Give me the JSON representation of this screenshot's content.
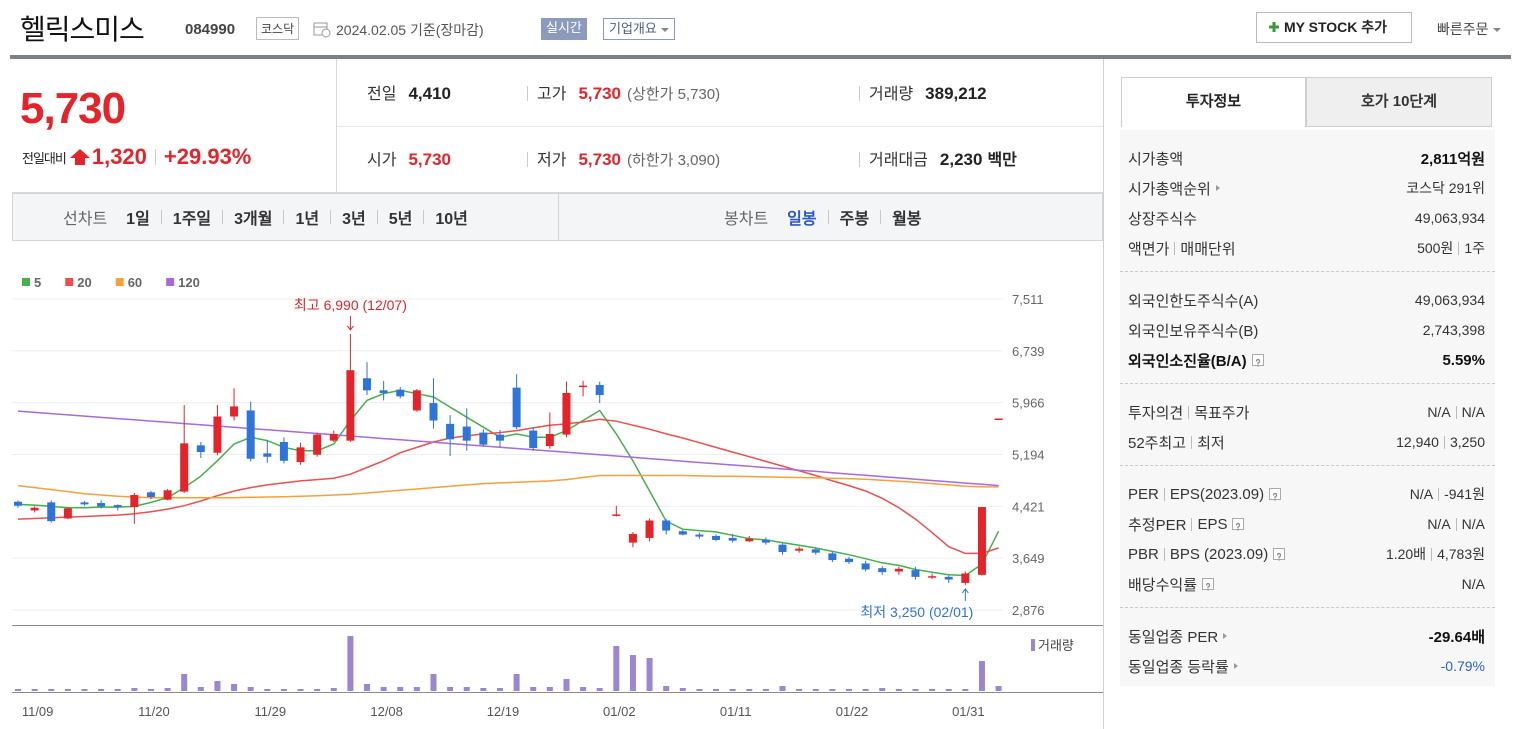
{
  "header": {
    "name": "헬릭스미스",
    "code": "084990",
    "market": "코스닥",
    "date": "2024.02.05 기준(장마감)",
    "realtime": "실시간",
    "company_info": "기업개요",
    "my_stock": "MY STOCK 추가",
    "quick_order": "빠른주문"
  },
  "price": {
    "current": "5,730",
    "change_label": "전일대비",
    "change": "1,320",
    "change_rate": "+29.93%"
  },
  "quote_table": [
    [
      {
        "label": "전일",
        "value": "4,410"
      },
      {
        "label": "고가",
        "value": "5,730",
        "note": "(상한가 5,730)",
        "highlight": true
      },
      {
        "label": "거래량",
        "value": "389,212"
      }
    ],
    [
      {
        "label": "시가",
        "value": "5,730",
        "highlight": true
      },
      {
        "label": "저가",
        "value": "5,730",
        "note": "(하한가 3,090)",
        "highlight": true
      },
      {
        "label": "거래대금",
        "value": "2,230",
        "unit": "백만"
      }
    ]
  ],
  "period_tabs": {
    "line_label": "선차트",
    "line": [
      "1일",
      "1주일",
      "3개월",
      "1년",
      "3년",
      "5년",
      "10년"
    ],
    "candle_label": "봉차트",
    "candle": [
      "일봉",
      "주봉",
      "월봉"
    ],
    "candle_active": 0
  },
  "info_tabs": [
    "투자정보",
    "호가 10단계"
  ],
  "info_groups": [
    [
      {
        "labels": [
          "시가총액"
        ],
        "values": [
          "2,811억원"
        ],
        "bold": true
      },
      {
        "labels": [
          "시가총액순위"
        ],
        "arrow": true,
        "values": [
          "코스닥 291위"
        ]
      },
      {
        "labels": [
          "상장주식수"
        ],
        "values": [
          "49,063,934"
        ]
      },
      {
        "labels": [
          "액면가",
          "매매단위"
        ],
        "values": [
          "500원",
          "1주"
        ]
      }
    ],
    [
      {
        "labels": [
          "외국인한도주식수(A)"
        ],
        "values": [
          "49,063,934"
        ]
      },
      {
        "labels": [
          "외국인보유주식수(B)"
        ],
        "values": [
          "2,743,398"
        ]
      },
      {
        "labels": [
          "외국인소진율(B/A)"
        ],
        "help": true,
        "values": [
          "5.59%"
        ],
        "bold": true
      }
    ],
    [
      {
        "labels": [
          "투자의견",
          "목표주가"
        ],
        "values": [
          "N/A",
          "N/A"
        ]
      },
      {
        "labels": [
          "52주최고",
          "최저"
        ],
        "values": [
          "12,940",
          "3,250"
        ]
      }
    ],
    [
      {
        "labels": [
          "PER",
          "EPS(2023.09)"
        ],
        "help": true,
        "values": [
          "N/A",
          "-941원"
        ]
      },
      {
        "labels": [
          "추정PER",
          "EPS"
        ],
        "help": true,
        "values": [
          "N/A",
          "N/A"
        ]
      },
      {
        "labels": [
          "PBR",
          "BPS (2023.09)"
        ],
        "help": true,
        "values": [
          "1.20배",
          "4,783원"
        ]
      },
      {
        "labels": [
          "배당수익률"
        ],
        "help": true,
        "values": [
          "N/A"
        ]
      }
    ],
    [
      {
        "labels": [
          "동일업종 PER"
        ],
        "arrow": true,
        "values": [
          "-29.64배"
        ],
        "bold": true
      },
      {
        "labels": [
          "동일업종 등락률"
        ],
        "arrow": true,
        "values": [
          "-0.79%"
        ],
        "color": "#2b5fd0"
      }
    ]
  ],
  "chart_data": {
    "type": "candlestick",
    "categories": [
      null,
      "11/09",
      null,
      null,
      null,
      null,
      null,
      null,
      "11/20",
      null,
      null,
      null,
      null,
      null,
      null,
      "11/29",
      null,
      null,
      null,
      null,
      null,
      null,
      "12/08",
      null,
      null,
      null,
      null,
      null,
      null,
      "12/19",
      null,
      null,
      null,
      null,
      null,
      null,
      "01/02",
      null,
      null,
      null,
      null,
      null,
      null,
      "01/11",
      null,
      null,
      null,
      null,
      null,
      null,
      "01/22",
      null,
      null,
      null,
      null,
      null,
      null,
      "01/31",
      null,
      null
    ],
    "open": [
      4490,
      4360,
      4480,
      4240,
      4480,
      4470,
      4440,
      4410,
      4630,
      4520,
      4640,
      5330,
      5220,
      5760,
      5850,
      5210,
      5380,
      5080,
      5190,
      5400,
      5400,
      6330,
      6150,
      6160,
      5850,
      5960,
      5650,
      5610,
      5520,
      5490,
      6190,
      5550,
      5320,
      5490,
      6200,
      6230,
      4280,
      3880,
      3950,
      4210,
      4050,
      4000,
      3980,
      3950,
      3900,
      3920,
      3850,
      3760,
      3780,
      3720,
      3640,
      3570,
      3500,
      3450,
      3470,
      3360,
      3370,
      3280,
      3400,
      5730
    ],
    "high": [
      4510,
      4420,
      4510,
      4400,
      4500,
      4510,
      4450,
      4620,
      4650,
      4680,
      5930,
      5380,
      5930,
      6180,
      5980,
      5400,
      5450,
      5370,
      5520,
      5550,
      6990,
      6570,
      6290,
      6200,
      6170,
      6330,
      5780,
      5880,
      5570,
      5560,
      6390,
      5600,
      5820,
      6280,
      6290,
      6280,
      4430,
      4040,
      4240,
      4230,
      4070,
      4030,
      4000,
      4010,
      3980,
      3960,
      3870,
      3820,
      3800,
      3750,
      3670,
      3610,
      3530,
      3520,
      3520,
      3420,
      3390,
      3450,
      4410,
      5730
    ],
    "low": [
      4400,
      4330,
      4180,
      4230,
      4430,
      4390,
      4360,
      4160,
      4530,
      4510,
      4620,
      5140,
      5180,
      5700,
      5090,
      5070,
      5060,
      5040,
      5160,
      5380,
      5380,
      6080,
      6000,
      6030,
      5830,
      5580,
      5170,
      5250,
      5310,
      5310,
      5570,
      5250,
      5280,
      5450,
      6060,
      5960,
      4270,
      3810,
      3900,
      4000,
      3990,
      3940,
      3900,
      3880,
      3890,
      3850,
      3700,
      3730,
      3700,
      3590,
      3560,
      3450,
      3400,
      3400,
      3330,
      3340,
      3280,
      3250,
      3390,
      5730
    ],
    "close": [
      4430,
      4400,
      4200,
      4390,
      4450,
      4420,
      4410,
      4590,
      4560,
      4660,
      5360,
      5230,
      5760,
      5910,
      5130,
      5160,
      5100,
      5300,
      5490,
      5500,
      6450,
      6150,
      6110,
      6060,
      6150,
      5700,
      5420,
      5400,
      5340,
      5400,
      5600,
      5290,
      5500,
      6110,
      6220,
      6080,
      4300,
      4010,
      4210,
      4060,
      4000,
      3970,
      3920,
      3910,
      3940,
      3880,
      3740,
      3790,
      3730,
      3620,
      3590,
      3480,
      3440,
      3490,
      3370,
      3380,
      3330,
      3420,
      4410,
      5730
    ],
    "volume": [
      156000,
      156000,
      156000,
      156000,
      156000,
      156000,
      156000,
      234000,
      156000,
      234000,
      1326000,
      312000,
      780000,
      546000,
      312000,
      156000,
      156000,
      156000,
      156000,
      234000,
      4290000,
      546000,
      312000,
      312000,
      312000,
      1326000,
      312000,
      312000,
      234000,
      234000,
      1326000,
      312000,
      312000,
      936000,
      312000,
      234000,
      3510000,
      2808000,
      2574000,
      390000,
      234000,
      156000,
      156000,
      156000,
      156000,
      156000,
      390000,
      156000,
      156000,
      156000,
      156000,
      156000,
      234000,
      156000,
      156000,
      156000,
      156000,
      156000,
      2340000,
      389212
    ],
    "volume_label": "거래량",
    "volume_color": "#9b86cf",
    "up_color": "#e3242b",
    "down_color": "#2f74d8",
    "series": [
      {
        "name": "5",
        "color": "#46b04a",
        "values": [
          4450,
          4440,
          4420,
          4400,
          4400,
          4410,
          4410,
          4420,
          4480,
          4550,
          4700,
          4870,
          5100,
          5350,
          5450,
          5400,
          5300,
          5250,
          5250,
          5350,
          5700,
          6000,
          6100,
          6150,
          6100,
          6050,
          5900,
          5750,
          5600,
          5450,
          5500,
          5450,
          5450,
          5550,
          5700,
          5850,
          5500,
          5100,
          4650,
          4200,
          4080,
          4060,
          4040,
          3990,
          3940,
          3920,
          3880,
          3840,
          3800,
          3750,
          3700,
          3640,
          3580,
          3540,
          3480,
          3440,
          3400,
          3390,
          3560,
          4050
        ]
      },
      {
        "name": "20",
        "color": "#ec4f4f",
        "values": [
          4230,
          4240,
          4250,
          4260,
          4270,
          4280,
          4290,
          4310,
          4340,
          4380,
          4430,
          4500,
          4580,
          4650,
          4700,
          4740,
          4770,
          4800,
          4820,
          4840,
          4900,
          5000,
          5100,
          5220,
          5300,
          5380,
          5440,
          5470,
          5500,
          5520,
          5550,
          5590,
          5630,
          5650,
          5680,
          5720,
          5690,
          5630,
          5570,
          5500,
          5440,
          5370,
          5300,
          5230,
          5160,
          5090,
          5020,
          4950,
          4880,
          4800,
          4730,
          4650,
          4540,
          4400,
          4230,
          4030,
          3820,
          3720,
          3720,
          3800
        ]
      },
      {
        "name": "60",
        "color": "#f5a03a",
        "values": [
          4730,
          4700,
          4670,
          4640,
          4610,
          4590,
          4570,
          4560,
          4550,
          4550,
          4550,
          4550,
          4550,
          4550,
          4555,
          4560,
          4565,
          4570,
          4580,
          4590,
          4600,
          4620,
          4640,
          4660,
          4680,
          4700,
          4720,
          4740,
          4760,
          4770,
          4780,
          4790,
          4800,
          4820,
          4850,
          4880,
          4880,
          4880,
          4880,
          4880,
          4880,
          4875,
          4870,
          4870,
          4865,
          4860,
          4855,
          4850,
          4845,
          4840,
          4835,
          4825,
          4810,
          4795,
          4780,
          4760,
          4740,
          4720,
          4710,
          4710
        ]
      },
      {
        "name": "120",
        "color": "#a76ad8",
        "values": [
          5840,
          5821,
          5803,
          5784,
          5766,
          5747,
          5729,
          5710,
          5691,
          5673,
          5654,
          5636,
          5617,
          5599,
          5580,
          5561,
          5543,
          5524,
          5506,
          5487,
          5469,
          5450,
          5431,
          5413,
          5394,
          5376,
          5357,
          5339,
          5320,
          5301,
          5283,
          5264,
          5246,
          5227,
          5209,
          5190,
          5171,
          5152,
          5133,
          5113,
          5094,
          5075,
          5056,
          5037,
          5017,
          4998,
          4979,
          4960,
          4941,
          4921,
          4902,
          4883,
          4864,
          4845,
          4825,
          4806,
          4787,
          4768,
          4749,
          4730
        ]
      }
    ],
    "annotations": [
      {
        "text": "최고 6,990 (12/07)",
        "color": "#e3242b",
        "at": "max"
      },
      {
        "text": "최저 3,250 (02/01)",
        "color": "#2f74d8",
        "at": "min"
      }
    ],
    "ylim": [
      2876,
      7511
    ],
    "yticks": [
      {
        "value": 2876,
        "label": "2,876"
      },
      {
        "value": 3649,
        "label": "3,649"
      },
      {
        "value": 4421,
        "label": "4,421"
      },
      {
        "value": 5194,
        "label": "5,194"
      },
      {
        "value": 5966,
        "label": "5,966"
      },
      {
        "value": 6739,
        "label": "6,739"
      },
      {
        "value": 7511,
        "label": "7,511"
      }
    ],
    "grid": true
  }
}
